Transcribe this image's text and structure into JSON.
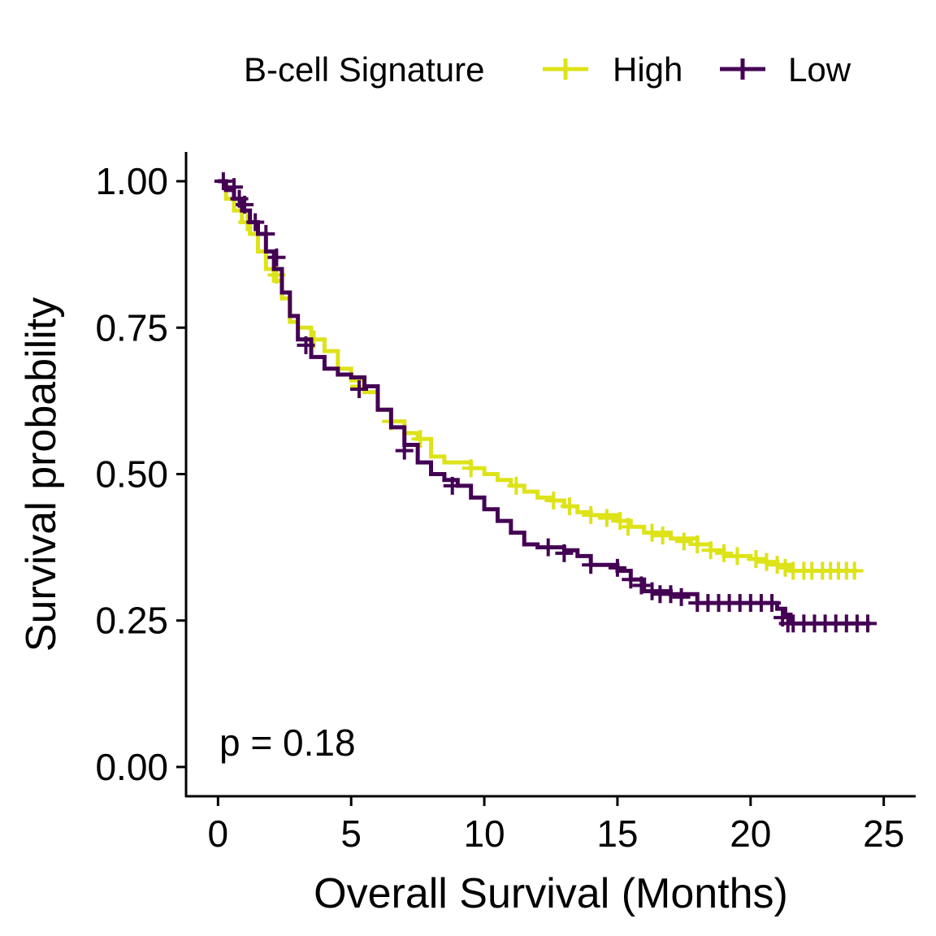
{
  "chart_data": {
    "type": "line",
    "subtype": "kaplan-meier",
    "title": "",
    "xlabel": "Overall Survival (Months)",
    "ylabel": "Survival probability",
    "xlim": [
      -1.2,
      26.2
    ],
    "ylim": [
      -0.05,
      1.05
    ],
    "x_ticks": [
      0,
      5,
      10,
      15,
      20,
      25
    ],
    "x_tick_labels": [
      "0",
      "5",
      "10",
      "15",
      "20",
      "25"
    ],
    "y_ticks": [
      0,
      0.25,
      0.5,
      0.75,
      1
    ],
    "y_tick_labels": [
      "0.00",
      "0.25",
      "0.50",
      "0.75",
      "1.00"
    ],
    "grid": false,
    "legend": {
      "title": "B-cell Signature",
      "position": "top"
    },
    "annotation": "p = 0.18",
    "series": [
      {
        "name": "High",
        "color": "#dde318",
        "x": [
          0,
          0.3,
          0.6,
          0.9,
          1.2,
          1.5,
          1.8,
          2.1,
          2.4,
          2.7,
          3.0,
          3.5,
          4.0,
          4.5,
          5.0,
          5.5,
          6.0,
          6.5,
          7.0,
          7.5,
          8.0,
          8.5,
          9.0,
          9.5,
          10.0,
          10.5,
          11.0,
          11.5,
          12.0,
          12.5,
          13.0,
          13.5,
          14.0,
          15.0,
          15.5,
          16.0,
          17.0,
          18.0,
          18.5,
          19.0,
          20.0,
          20.5,
          21.0,
          21.5,
          24.0
        ],
        "y": [
          1.0,
          0.97,
          0.95,
          0.93,
          0.91,
          0.88,
          0.85,
          0.83,
          0.8,
          0.76,
          0.75,
          0.73,
          0.71,
          0.68,
          0.66,
          0.64,
          0.61,
          0.59,
          0.57,
          0.56,
          0.53,
          0.52,
          0.52,
          0.51,
          0.5,
          0.49,
          0.48,
          0.47,
          0.46,
          0.455,
          0.445,
          0.435,
          0.43,
          0.42,
          0.41,
          0.4,
          0.39,
          0.38,
          0.37,
          0.36,
          0.355,
          0.35,
          0.345,
          0.335,
          0.335
        ],
        "censor_x": [
          1.1,
          2.2,
          3.6,
          5.3,
          6.5,
          7.6,
          9.5,
          11.2,
          12.6,
          13.2,
          14.0,
          14.6,
          15.1,
          15.4,
          16.3,
          16.7,
          17.5,
          18.0,
          18.5,
          19.0,
          19.5,
          20.2,
          20.6,
          21.0,
          21.3,
          21.6,
          22.0,
          22.3,
          22.7,
          23.0,
          23.3,
          23.6,
          23.9
        ],
        "censor_y": [
          0.93,
          0.84,
          0.73,
          0.65,
          0.59,
          0.56,
          0.51,
          0.48,
          0.455,
          0.445,
          0.43,
          0.425,
          0.42,
          0.41,
          0.4,
          0.395,
          0.385,
          0.38,
          0.37,
          0.365,
          0.36,
          0.355,
          0.35,
          0.345,
          0.34,
          0.335,
          0.335,
          0.335,
          0.335,
          0.335,
          0.335,
          0.335,
          0.335
        ]
      },
      {
        "name": "Low",
        "color": "#440154",
        "x": [
          0,
          0.3,
          0.6,
          0.9,
          1.2,
          1.5,
          1.8,
          2.1,
          2.4,
          2.7,
          3.0,
          3.5,
          4.0,
          4.5,
          5.0,
          5.5,
          6.0,
          6.5,
          7.0,
          7.5,
          8.0,
          8.5,
          9.0,
          9.5,
          10.0,
          10.5,
          11.0,
          11.5,
          12.0,
          12.5,
          13.0,
          13.5,
          14.0,
          15.0,
          15.5,
          16.0,
          17.0,
          18.0,
          19.0,
          20.0,
          21.0,
          21.3,
          21.5,
          24.5
        ],
        "y": [
          1.0,
          0.985,
          0.97,
          0.95,
          0.93,
          0.91,
          0.88,
          0.85,
          0.81,
          0.77,
          0.73,
          0.7,
          0.68,
          0.67,
          0.665,
          0.65,
          0.61,
          0.58,
          0.55,
          0.52,
          0.5,
          0.49,
          0.48,
          0.46,
          0.44,
          0.42,
          0.4,
          0.38,
          0.375,
          0.375,
          0.37,
          0.36,
          0.345,
          0.335,
          0.32,
          0.3,
          0.295,
          0.28,
          0.28,
          0.28,
          0.27,
          0.26,
          0.245,
          0.245
        ],
        "censor_x": [
          0.2,
          0.6,
          0.8,
          1.0,
          1.4,
          1.8,
          2.2,
          3.3,
          5.3,
          7.0,
          8.8,
          12.4,
          13.0,
          14.0,
          15.0,
          15.5,
          15.9,
          16.3,
          16.6,
          17.0,
          17.4,
          18.0,
          18.4,
          18.8,
          19.2,
          19.6,
          20.0,
          20.4,
          20.8,
          21.2,
          21.4,
          21.6,
          22.0,
          22.4,
          22.8,
          23.2,
          23.6,
          24.0,
          24.4
        ],
        "censor_y": [
          1.0,
          0.99,
          0.97,
          0.96,
          0.93,
          0.91,
          0.87,
          0.72,
          0.645,
          0.54,
          0.48,
          0.375,
          0.365,
          0.345,
          0.34,
          0.32,
          0.31,
          0.3,
          0.295,
          0.295,
          0.29,
          0.28,
          0.28,
          0.28,
          0.28,
          0.28,
          0.28,
          0.28,
          0.28,
          0.255,
          0.245,
          0.245,
          0.245,
          0.245,
          0.245,
          0.245,
          0.245,
          0.245,
          0.245
        ]
      }
    ]
  }
}
